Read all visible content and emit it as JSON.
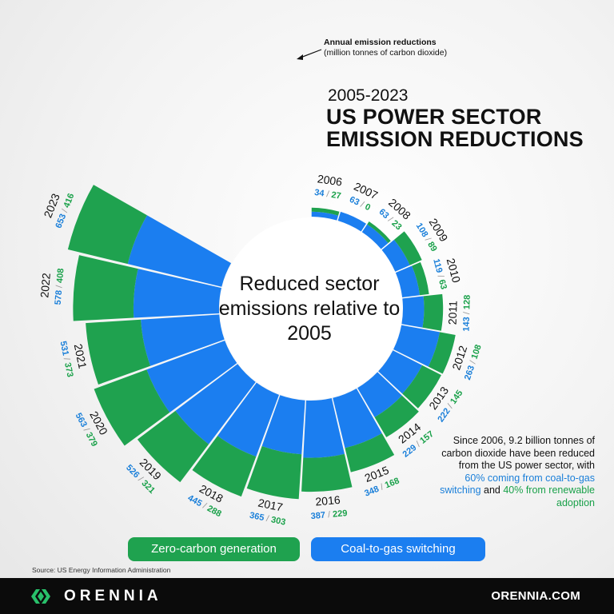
{
  "header": {
    "years": "2005-2023",
    "title_line1": "US POWER SECTOR",
    "title_line2": "EMISSION REDUCTIONS"
  },
  "annotation": {
    "line1": "Annual emission reductions",
    "line2": "(million tonnes of carbon dioxide)"
  },
  "center_text": "Reduced sector emissions relative to 2005",
  "summary": {
    "part1": "Since 2006, 9.2 billion tonnes of carbon dioxide have been reduced from the US power sector, with ",
    "blue_text": "60% coming from coal-to-gas switching",
    "part2": " and ",
    "green_text": "40% from renewable adoption"
  },
  "legend": {
    "green_label": "Zero-carbon generation",
    "blue_label": "Coal-to-gas switching"
  },
  "source": "Source: US Energy Information Administration",
  "footer": {
    "brand": "ORENNIA",
    "url": "ORENNIA.COM"
  },
  "colors": {
    "green": "#1fa24f",
    "blue": "#1b7ef0",
    "green_text": "#1aa14a",
    "blue_text": "#1a7fd9",
    "footer_bg": "#0b0b0b"
  },
  "chart_data": {
    "type": "radial-stacked-bar",
    "title": "2005-2023 US POWER SECTOR EMISSION REDUCTIONS",
    "unit": "million tonnes of carbon dioxide",
    "categories": [
      "2006",
      "2007",
      "2008",
      "2009",
      "2010",
      "2011",
      "2012",
      "2013",
      "2014",
      "2015",
      "2016",
      "2017",
      "2018",
      "2019",
      "2020",
      "2021",
      "2022",
      "2023"
    ],
    "series": [
      {
        "name": "Coal-to-gas switching",
        "color": "#1b7ef0",
        "values": [
          34,
          63,
          63,
          108,
          119,
          143,
          263,
          222,
          229,
          348,
          387,
          365,
          445,
          526,
          563,
          531,
          578,
          653
        ]
      },
      {
        "name": "Zero-carbon generation",
        "color": "#1fa24f",
        "values": [
          27,
          0,
          23,
          89,
          63,
          128,
          108,
          145,
          157,
          168,
          229,
          303,
          288,
          321,
          379,
          373,
          408,
          416
        ]
      }
    ]
  }
}
